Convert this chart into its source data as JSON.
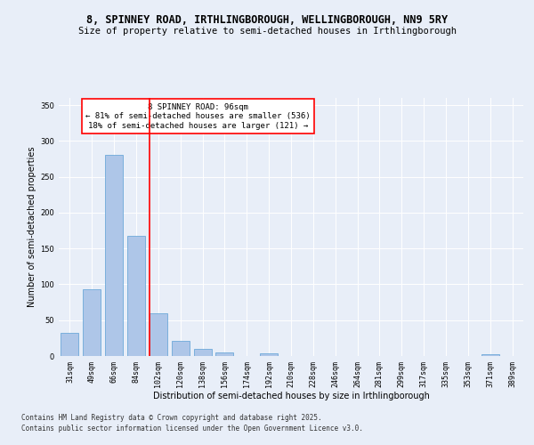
{
  "title_line1": "8, SPINNEY ROAD, IRTHLINGBOROUGH, WELLINGBOROUGH, NN9 5RY",
  "title_line2": "Size of property relative to semi-detached houses in Irthlingborough",
  "xlabel": "Distribution of semi-detached houses by size in Irthlingborough",
  "ylabel": "Number of semi-detached properties",
  "categories": [
    "31sqm",
    "49sqm",
    "66sqm",
    "84sqm",
    "102sqm",
    "120sqm",
    "138sqm",
    "156sqm",
    "174sqm",
    "192sqm",
    "210sqm",
    "228sqm",
    "246sqm",
    "264sqm",
    "281sqm",
    "299sqm",
    "317sqm",
    "335sqm",
    "353sqm",
    "371sqm",
    "389sqm"
  ],
  "values": [
    32,
    93,
    280,
    168,
    60,
    21,
    10,
    5,
    0,
    4,
    0,
    0,
    0,
    0,
    0,
    0,
    0,
    0,
    0,
    3,
    0
  ],
  "bar_color": "#aec6e8",
  "bar_edge_color": "#5a9fd4",
  "vline_color": "red",
  "vline_index": 4,
  "annotation_title": "8 SPINNEY ROAD: 96sqm",
  "annotation_line1": "← 81% of semi-detached houses are smaller (536)",
  "annotation_line2": "18% of semi-detached houses are larger (121) →",
  "annotation_box_color": "white",
  "annotation_box_edge": "red",
  "ylim": [
    0,
    360
  ],
  "yticks": [
    0,
    50,
    100,
    150,
    200,
    250,
    300,
    350
  ],
  "bg_color": "#e8eef8",
  "plot_bg_color": "#e8eef8",
  "footer_line1": "Contains HM Land Registry data © Crown copyright and database right 2025.",
  "footer_line2": "Contains public sector information licensed under the Open Government Licence v3.0.",
  "title_fontsize": 8.5,
  "subtitle_fontsize": 7.5,
  "axis_label_fontsize": 7,
  "tick_fontsize": 6,
  "annotation_fontsize": 6.5,
  "footer_fontsize": 5.5
}
